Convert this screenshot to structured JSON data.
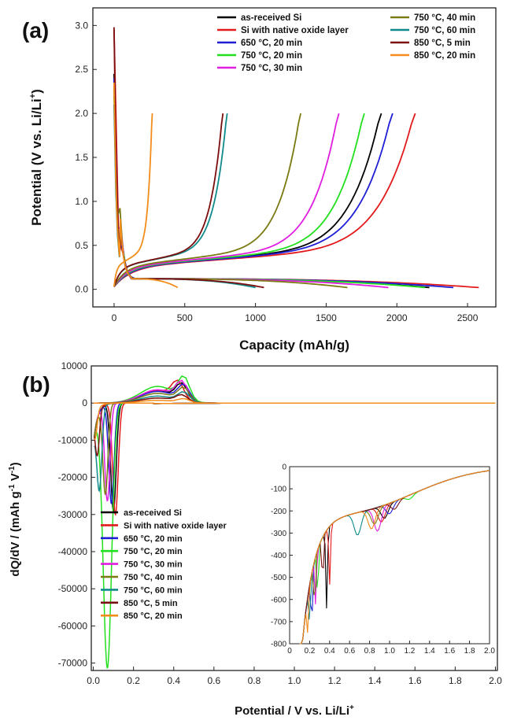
{
  "panel_a_label": "(a)",
  "panel_b_label": "(b)",
  "chart_data": [
    {
      "id": "a",
      "type": "line",
      "title": "",
      "xlabel": "Capacity (mAh/g)",
      "ylabel": "Potential (V vs. Li/Li",
      "ylabel_sup": "+",
      "ylabel_close": ")",
      "xlim": [
        -150,
        2700
      ],
      "ylim": [
        -0.2,
        3.2
      ],
      "xticks": [
        0,
        500,
        1000,
        1500,
        2000,
        2500
      ],
      "xtick_labels": [
        "0",
        "500",
        "1000",
        "1500",
        "2000",
        "2500"
      ],
      "yticks": [
        0.0,
        0.5,
        1.0,
        1.5,
        2.0,
        2.5,
        3.0
      ],
      "ytick_labels": [
        "0.0",
        "0.5",
        "1.0",
        "1.5",
        "2.0",
        "2.5",
        "3.0"
      ],
      "series": [
        {
          "name": "as-received Si",
          "color": "#000000",
          "discharge_end": 2230,
          "charge_end": 1890
        },
        {
          "name": "Si with native oxide layer",
          "color": "#e31a1c",
          "discharge_end": 2580,
          "charge_end": 2130
        },
        {
          "name": "650 °C, 20 min",
          "color": "#1f1fd6",
          "discharge_end": 2400,
          "charge_end": 1970
        },
        {
          "name": "750 °C, 20 min",
          "color": "#22e01e",
          "discharge_end": 2200,
          "charge_end": 1770
        },
        {
          "name": "750 °C, 30 min",
          "color": "#e01ee0",
          "discharge_end": 1940,
          "charge_end": 1590
        },
        {
          "name": "750 °C, 40 min",
          "color": "#7a7a12",
          "discharge_end": 1650,
          "charge_end": 1320
        },
        {
          "name": "750 °C, 60 min",
          "color": "#108a8a",
          "discharge_end": 1000,
          "charge_end": 800
        },
        {
          "name": "850 °C, 5 min",
          "color": "#7a0e0e",
          "discharge_end": 1060,
          "charge_end": 770
        },
        {
          "name": "850 °C, 20 min",
          "color": "#f28c1a",
          "discharge_end": 450,
          "charge_end": 270
        }
      ],
      "legend_columns": [
        [
          "as-received Si",
          "Si with native oxide layer",
          "650 °C, 20 min",
          "750 °C, 20 min",
          "750 °C, 30 min"
        ],
        [
          "750 °C, 40 min",
          "750 °C, 60 min",
          "850 °C, 5 min",
          "850 °C, 20 min"
        ]
      ]
    },
    {
      "id": "b",
      "type": "line",
      "title": "",
      "xlabel": "Potential / V vs. Li/Li",
      "xlabel_sup": "+",
      "ylabel": "dQ/dV / (mAh g",
      "ylabel_sup1": "-1",
      "ylabel_mid": " V",
      "ylabel_sup2": "-1",
      "ylabel_close": ")",
      "xlim": [
        -0.01,
        2.01
      ],
      "ylim": [
        -72000,
        10000
      ],
      "xticks": [
        0.0,
        0.2,
        0.4,
        0.6,
        0.8,
        1.0,
        1.2,
        1.4,
        1.6,
        1.8,
        2.0
      ],
      "xtick_labels": [
        "0.0",
        "0.2",
        "0.4",
        "0.6",
        "0.8",
        "1.0",
        "1.2",
        "1.4",
        "1.6",
        "1.8",
        "2.0"
      ],
      "yticks": [
        10000,
        0,
        -10000,
        -20000,
        -30000,
        -40000,
        -50000,
        -60000,
        -70000
      ],
      "ytick_labels": [
        "10000",
        "0",
        "-10000",
        "-20000",
        "-30000",
        "-40000",
        "-50000",
        "-60000",
        "-70000"
      ],
      "series": [
        {
          "name": "as-received Si",
          "color": "#000000",
          "peak_x": 0.1,
          "peak_y": -29000,
          "ox_x": 0.44,
          "ox_y": 4300
        },
        {
          "name": "Si with native oxide layer",
          "color": "#e31a1c",
          "peak_x": 0.11,
          "peak_y": -30000,
          "ox_x": 0.42,
          "ox_y": 4500
        },
        {
          "name": "650 °C, 20 min",
          "color": "#1f1fd6",
          "peak_x": 0.09,
          "peak_y": -27000,
          "ox_x": 0.45,
          "ox_y": 4200
        },
        {
          "name": "750 °C, 20 min",
          "color": "#22e01e",
          "peak_x": 0.07,
          "peak_y": -71000,
          "ox_x": 0.45,
          "ox_y": 6000
        },
        {
          "name": "750 °C, 30 min",
          "color": "#e01ee0",
          "peak_x": 0.07,
          "peak_y": -26000,
          "ox_x": 0.44,
          "ox_y": 4800
        },
        {
          "name": "750 °C, 40 min",
          "color": "#7a7a12",
          "peak_x": 0.06,
          "peak_y": -24000,
          "ox_x": 0.45,
          "ox_y": 3500
        },
        {
          "name": "750 °C, 60 min",
          "color": "#108a8a",
          "peak_x": 0.03,
          "peak_y": -21000,
          "ox_x": 0.45,
          "ox_y": 2500
        },
        {
          "name": "850 °C, 5 min",
          "color": "#7a0e0e",
          "peak_x": 0.02,
          "peak_y": -12000,
          "ox_x": 0.44,
          "ox_y": 1800
        },
        {
          "name": "850 °C, 20 min",
          "color": "#f28c1a",
          "peak_x": 0.01,
          "peak_y": -6000,
          "ox_x": 0.45,
          "ox_y": 1000
        }
      ],
      "inset": {
        "xlim": [
          0.0,
          2.0
        ],
        "ylim": [
          -800,
          0
        ],
        "xticks": [
          0.2,
          0.4,
          0.6,
          0.8,
          1.0,
          1.2,
          1.4,
          1.6,
          1.8,
          2.0
        ],
        "xtick_labels": [
          "0.2",
          "0.4",
          "0.6",
          "0.8",
          "1.0",
          "1.2",
          "1.4",
          "1.6",
          "1.8",
          "2.0"
        ],
        "xtick0_label": "0",
        "yticks": [
          0,
          -100,
          -200,
          -300,
          -400,
          -500,
          -600,
          -700,
          -800
        ],
        "ytick_labels": [
          "0",
          "-100",
          "-200",
          "-300",
          "-400",
          "-500",
          "-600",
          "-700",
          "-800"
        ]
      }
    }
  ]
}
